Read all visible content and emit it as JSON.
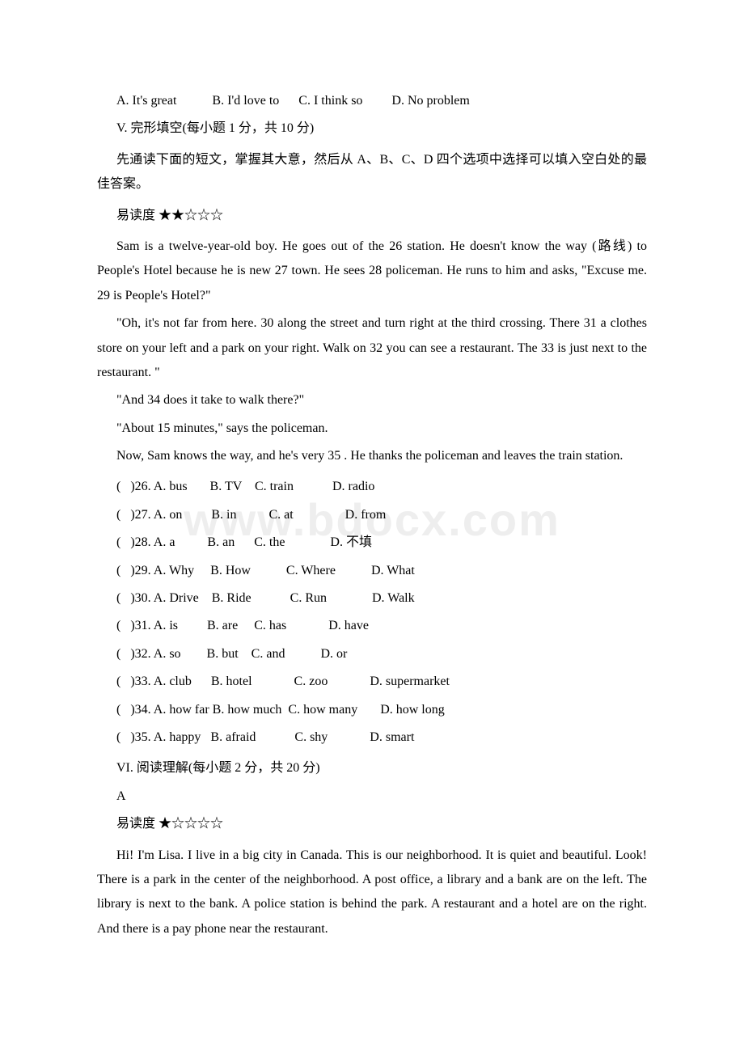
{
  "watermark": "www.bdocx.com",
  "topQuestion": {
    "optA": "A. It's great",
    "optB": "B. I'd love to",
    "optC": "C. I think so",
    "optD": "D. No problem"
  },
  "sectionV": {
    "header": "V. 完形填空(每小题 1 分，共 10 分)",
    "instruction": "先通读下面的短文，掌握其大意，然后从 A、B、C、D 四个选项中选择可以填入空白处的最佳答案。",
    "difficulty": "易读度 ★★☆☆☆",
    "para1": "Sam is a twelve-year-old boy. He goes out of the   26   station. He doesn't know the way (路线) to People's Hotel because he is new   27   town. He sees   28   policeman. He runs to him and asks, \"Excuse me.   29   is People's Hotel?\"",
    "para2": "\"Oh, it's not far from here.   30   along the street and turn right at the third crossing. There   31   a clothes store on your left and a park on your right. Walk on   32   you can see a restaurant. The   33   is just next to the restaurant. \"",
    "para3": "\"And   34   does it take to walk there?\"",
    "para4": "\"About 15 minutes,\" says the policeman.",
    "para5": "Now, Sam knows the way, and he's very   35  . He thanks the policeman and leaves the train station.",
    "q26": "(   )26. A. bus       B. TV    C. train            D. radio",
    "q27": "(   )27. A. on         B. in          C. at                D. from",
    "q28": "(   )28. A. a          B. an      C. the              D. 不填",
    "q29": "(   )29. A. Why     B. How           C. Where           D. What",
    "q30": "(   )30. A. Drive    B. Ride            C. Run              D. Walk",
    "q31": "(   )31. A. is         B. are     C. has             D. have",
    "q32": "(   )32. A. so        B. but    C. and           D. or",
    "q33": "(   )33. A. club      B. hotel             C. zoo             D. supermarket",
    "q34": "(   )34. A. how far B. how much  C. how many       D. how long",
    "q35": "(   )35. A. happy   B. afraid            C. shy             D. smart"
  },
  "sectionVI": {
    "header": "VI. 阅读理解(每小题 2 分，共 20 分)",
    "partLabel": "A",
    "difficulty": "易读度 ★☆☆☆☆",
    "para1": "Hi! I'm Lisa. I live in a big city in Canada. This is our neighborhood. It is quiet and beautiful. Look! There is a park in the center of the neighborhood. A post office, a library and a bank are on the left. The library is next to the bank. A police station is behind the park. A restaurant and a hotel are on the right. And there is a pay phone near the restaurant."
  }
}
